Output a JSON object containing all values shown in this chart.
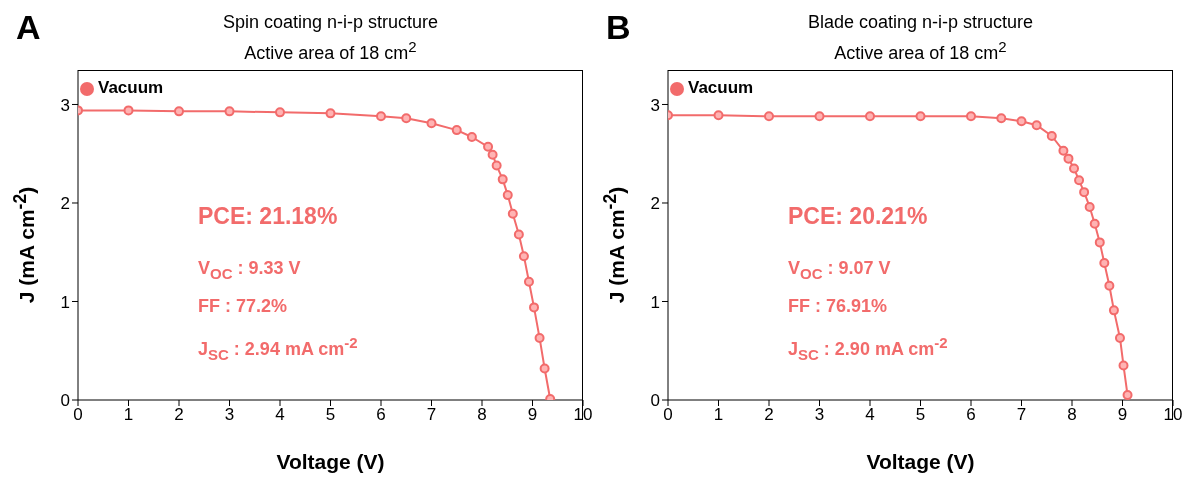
{
  "chart_data": [
    {
      "type": "line",
      "title": "A",
      "xlabel": "Voltage (V)",
      "ylabel": "J (mA cm$^{-2}$)",
      "xlim": [
        0,
        10
      ],
      "xticks": [
        0,
        1,
        2,
        3,
        4,
        5,
        6,
        7,
        8,
        9,
        10
      ],
      "ylim": [
        0,
        3.35
      ],
      "yticks": [
        0,
        1,
        2,
        3
      ],
      "grid": false,
      "legend": "top left",
      "marker": "circle",
      "line_style": "solid",
      "annotations": [
        "Spin coating n-i-p structure",
        "Active area of 18 cm$^{2}$",
        "PCE: 21.18%",
        "V$_{OC}$ : 9.33 V",
        "FF : 77.2%",
        "J$_{SC}$ : 2.94 mA cm$^{-2}$"
      ],
      "series": [
        {
          "name": "Vacuum",
          "color": "#f26b6b",
          "x": [
            0,
            1,
            2,
            3,
            4,
            5,
            6,
            6.5,
            7,
            7.5,
            7.8,
            8.12,
            8.21,
            8.29,
            8.41,
            8.51,
            8.61,
            8.73,
            8.83,
            8.93,
            9.03,
            9.14,
            9.24,
            9.35
          ],
          "values": [
            2.94,
            2.94,
            2.93,
            2.93,
            2.92,
            2.91,
            2.88,
            2.86,
            2.81,
            2.74,
            2.67,
            2.57,
            2.49,
            2.38,
            2.24,
            2.08,
            1.89,
            1.68,
            1.46,
            1.2,
            0.94,
            0.63,
            0.32,
            0.01
          ]
        }
      ]
    },
    {
      "type": "line",
      "title": "B",
      "xlabel": "Voltage (V)",
      "ylabel": "J (mA cm$^{-2}$)",
      "xlim": [
        0,
        10
      ],
      "xticks": [
        0,
        1,
        2,
        3,
        4,
        5,
        6,
        7,
        8,
        9,
        10
      ],
      "ylim": [
        0,
        3.35
      ],
      "yticks": [
        0,
        1,
        2,
        3
      ],
      "grid": false,
      "legend": "top left",
      "marker": "circle",
      "line_style": "solid",
      "annotations": [
        "Blade coating n-i-p structure",
        "Active area of 18 cm$^{2}$",
        "PCE: 20.21%",
        "V$_{OC}$ : 9.07 V",
        "FF : 76.91%",
        "J$_{SC}$ : 2.90 mA cm$^{-2}$"
      ],
      "series": [
        {
          "name": "Vacuum",
          "color": "#f26b6b",
          "x": [
            0,
            1,
            2,
            3,
            4,
            5,
            6,
            6.6,
            7,
            7.3,
            7.6,
            7.83,
            7.93,
            8.04,
            8.14,
            8.24,
            8.35,
            8.45,
            8.55,
            8.64,
            8.74,
            8.83,
            8.95,
            9.02,
            9.1
          ],
          "values": [
            2.89,
            2.89,
            2.88,
            2.88,
            2.88,
            2.88,
            2.88,
            2.86,
            2.83,
            2.79,
            2.68,
            2.53,
            2.45,
            2.35,
            2.23,
            2.11,
            1.96,
            1.79,
            1.6,
            1.39,
            1.16,
            0.91,
            0.63,
            0.35,
            0.05
          ]
        }
      ]
    }
  ]
}
